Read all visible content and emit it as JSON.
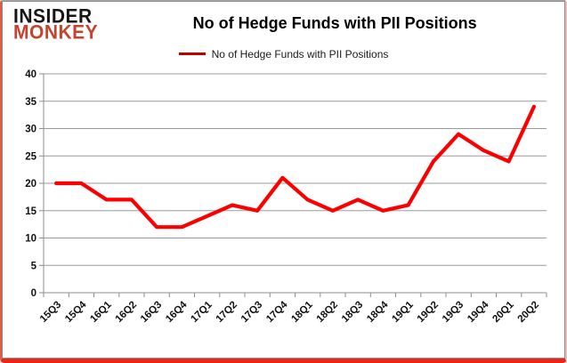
{
  "logo": {
    "line1": "INSIDER",
    "line2": "MONKEY",
    "line2_color": "#c7432e"
  },
  "header": {
    "title": "No of Hedge Funds with PII Positions"
  },
  "legend": {
    "label": "No of Hedge Funds with PII Positions",
    "swatch_color": "#c00000"
  },
  "chart_data": {
    "type": "line",
    "title": "No of Hedge Funds with PII Positions",
    "categories": [
      "15Q3",
      "15Q4",
      "16Q1",
      "16Q2",
      "16Q3",
      "16Q4",
      "17Q1",
      "17Q2",
      "17Q3",
      "17Q4",
      "18Q1",
      "18Q2",
      "18Q3",
      "18Q4",
      "19Q1",
      "19Q2",
      "19Q3",
      "19Q4",
      "20Q1",
      "20Q2"
    ],
    "series": [
      {
        "name": "No of Hedge Funds with PII Positions",
        "color": "#fb0000",
        "values": [
          20,
          20,
          17,
          17,
          12,
          12,
          14,
          16,
          15,
          21,
          17,
          15,
          17,
          15,
          16,
          24,
          29,
          26,
          24,
          34
        ]
      }
    ],
    "xlabel": "",
    "ylabel": "",
    "ylim": [
      0,
      40
    ],
    "yticks": [
      0,
      5,
      10,
      15,
      20,
      25,
      30,
      35,
      40
    ],
    "grid": true,
    "legend_position": "top"
  },
  "colors": {
    "line": "#fb0000",
    "grid": "#9b9b9b",
    "axis": "#8e8e8e",
    "tick_text": "#111111",
    "border_red": "#ea2517"
  }
}
